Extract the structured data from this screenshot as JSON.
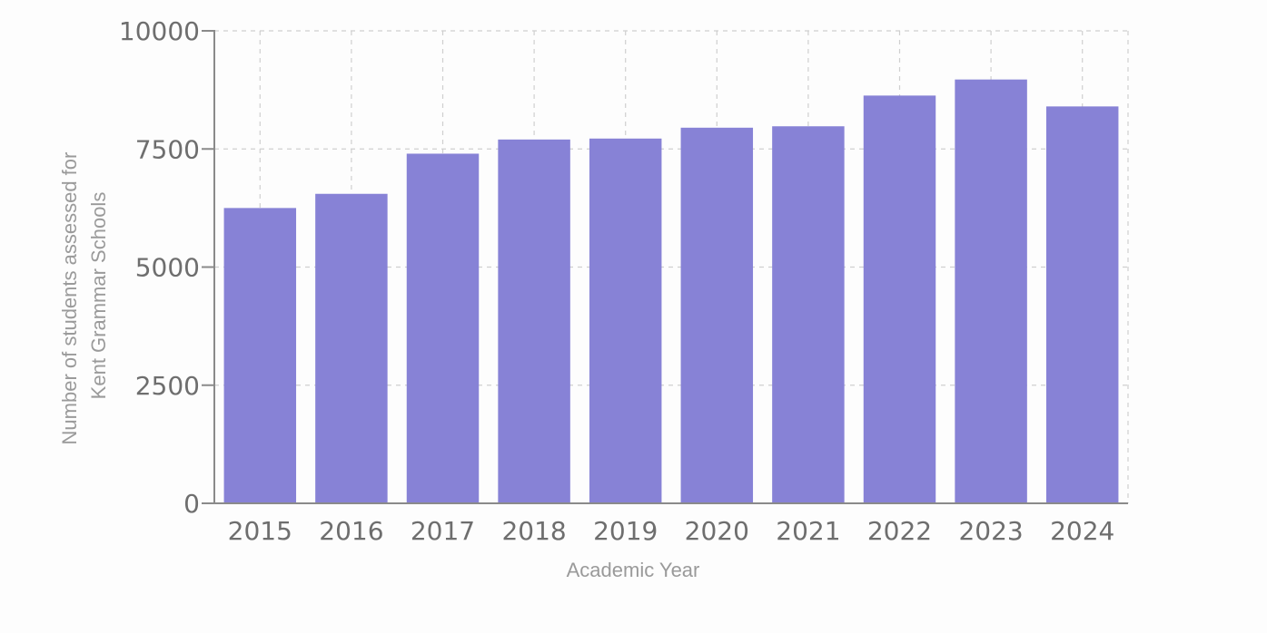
{
  "chart_data": {
    "type": "bar",
    "categories": [
      "2015",
      "2016",
      "2017",
      "2018",
      "2019",
      "2020",
      "2021",
      "2022",
      "2023",
      "2024"
    ],
    "values": [
      6250,
      6550,
      7400,
      7700,
      7720,
      7950,
      7980,
      8630,
      8970,
      8400
    ],
    "xlabel": "Academic Year",
    "ylabel": [
      "Number of students assessed for",
      "Kent Grammar Schools"
    ],
    "ylim": [
      0,
      10000
    ],
    "yticks": [
      0,
      2500,
      5000,
      7500,
      10000
    ],
    "ytick_labels": [
      "0",
      "2500",
      "5000",
      "7500",
      "10000"
    ],
    "grid": true,
    "bar_color": "#8782d6"
  }
}
